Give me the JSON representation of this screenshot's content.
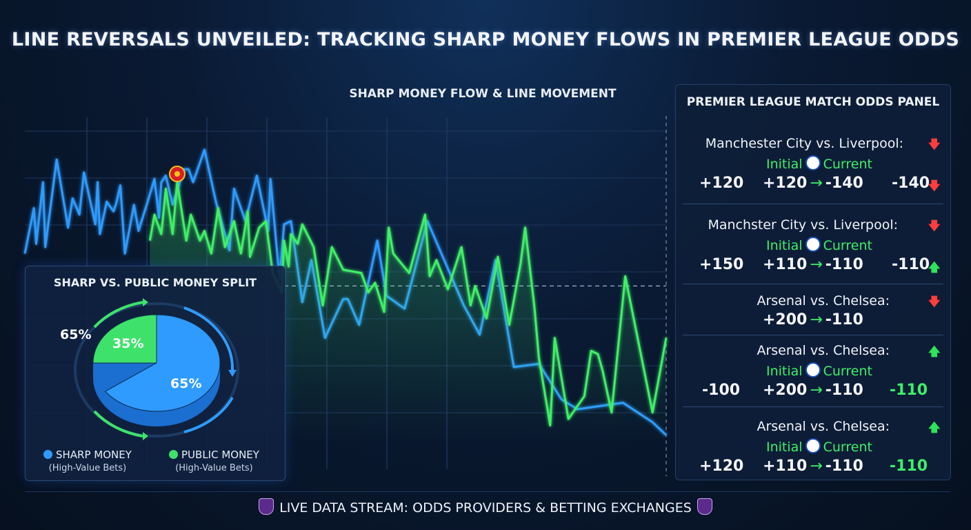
{
  "title": "LINE REVERSALS UNVEILED: TRACKING SHARP MONEY FLOWS IN PREMIER LEAGUE ODDS",
  "chart_data": {
    "type": "line",
    "title": "SHARP MONEY FLOW & LINE MOVEMENT",
    "xlabel": "",
    "ylabel": "",
    "ylim": [
      0,
      100
    ],
    "grid": true,
    "series": [
      {
        "name": "Sharp Money",
        "color": "#2f9bff",
        "x": [
          0,
          4,
          5,
          8,
          9,
          14,
          19,
          21,
          24,
          26,
          31,
          32,
          33,
          36,
          39,
          40,
          42,
          44,
          48,
          50,
          54,
          57,
          59,
          60,
          62,
          65,
          70,
          72,
          74,
          79,
          84,
          90,
          92,
          97,
          102,
          107,
          108,
          112,
          114,
          117,
          122,
          126,
          132,
          140,
          142,
          147,
          155,
          159,
          167,
          177,
          193,
          200,
          207,
          215,
          226,
          236,
          243,
          263,
          276,
          282
        ],
        "y": [
          58,
          72,
          61,
          80,
          60,
          87,
          66,
          75,
          70,
          83,
          67,
          80,
          64,
          74,
          71,
          73,
          79,
          58,
          73,
          65,
          74,
          81,
          69,
          80,
          82,
          73,
          84,
          84,
          80,
          90,
          74,
          59,
          78,
          68,
          82,
          65,
          81,
          50,
          67,
          68,
          43,
          56,
          32,
          44,
          44,
          36,
          62,
          45,
          41,
          68,
          42,
          33,
          56,
          23,
          24,
          13,
          10,
          12,
          6,
          2
        ]
      },
      {
        "name": "Public Money",
        "color": "#3ff066",
        "x": [
          55,
          57,
          60,
          62,
          65,
          67,
          71,
          73,
          77,
          79,
          82,
          85,
          88,
          92,
          95,
          98,
          99,
          103,
          106,
          109,
          113,
          114,
          116,
          117,
          120,
          122,
          127,
          131,
          135,
          140,
          148,
          151,
          154,
          158,
          160,
          162,
          169,
          176,
          178,
          181,
          186,
          192,
          196,
          198,
          203,
          208,
          213,
          218,
          220,
          224,
          226,
          231,
          233,
          239,
          246,
          249,
          252,
          254,
          258,
          264,
          276,
          282
        ],
        "y": [
          62,
          70,
          64,
          78,
          64,
          80,
          62,
          70,
          62,
          65,
          58,
          72,
          60,
          68,
          58,
          71,
          57,
          66,
          68,
          52,
          46,
          62,
          54,
          64,
          61,
          67,
          60,
          42,
          60,
          53,
          52,
          46,
          49,
          40,
          66,
          58,
          52,
          70,
          51,
          56,
          47,
          60,
          42,
          48,
          38,
          57,
          36,
          55,
          66,
          42,
          26,
          5,
          32,
          7,
          14,
          28,
          27,
          22,
          9,
          51,
          9,
          32
        ]
      }
    ],
    "axis_ranges": {
      "x": [
        0,
        282
      ],
      "y": [
        0,
        100
      ]
    },
    "annotations": [
      "Manchester United crest at peak of public money line",
      "dashed reversal reference line"
    ]
  },
  "pie_chart": {
    "type": "pie",
    "title": "SHARP VS. PUBLIC MONEY SPLIT",
    "slices": [
      {
        "label": "SHARP MONEY",
        "value": 65,
        "color": "#2f9bff",
        "display": "65%"
      },
      {
        "label": "PUBLIC MONEY",
        "value": 35,
        "color": "#3ee26a",
        "display": "35%"
      }
    ],
    "outer_label": "65%",
    "legend": [
      {
        "label": "SHARP MONEY",
        "sub": "(High-Value Bets)",
        "color": "#2f9bff"
      },
      {
        "label": "PUBLIC MONEY",
        "sub": "(High-Value Bets)",
        "color": "#3ee26a"
      }
    ]
  },
  "odds_panel": {
    "title": "PREMIER LEAGUE MATCH ODDS PANEL",
    "initial_label": "Initial",
    "current_label": "Current",
    "matches": [
      {
        "name": "Manchester City vs. Liverpool:",
        "arrow": "down",
        "show_sub": true,
        "left": "+120",
        "mid_from": "+120",
        "mid_to": "-140",
        "right": "-140",
        "right_arrow": "down",
        "right_green": false
      },
      {
        "name": "Manchster City vs. Liverpool:",
        "arrow": "down",
        "show_sub": true,
        "left": "+150",
        "mid_from": "+110",
        "mid_to": "-110",
        "right": "-110",
        "right_arrow": "up",
        "right_green": false
      },
      {
        "name": "Arsenal vs. Chelsea:",
        "arrow": "down",
        "show_sub": false,
        "left": "",
        "mid_from": "+200",
        "mid_to": "-110",
        "right": "",
        "right_arrow": "",
        "right_green": false
      },
      {
        "name": "Arsenal vs. Chelsea:",
        "arrow": "up",
        "show_sub": true,
        "left": "-100",
        "mid_from": "+200",
        "mid_to": "-110",
        "right": "-110",
        "right_arrow": "",
        "right_green": true
      },
      {
        "name": "Arsenal vs. Chelsea:",
        "arrow": "up",
        "show_sub": true,
        "left": "+120",
        "mid_from": "+110",
        "mid_to": "-110",
        "right": "-110",
        "right_arrow": "",
        "right_green": true
      }
    ]
  },
  "footer": "LIVE DATA STREAM: ODDS PROVIDERS & BETTING EXCHANGES",
  "icons": [
    "premier-league-lion-icon",
    "manchester-united-crest-icon",
    "football-icon",
    "arrow-down-icon",
    "arrow-up-icon",
    "arrow-right-icon"
  ]
}
